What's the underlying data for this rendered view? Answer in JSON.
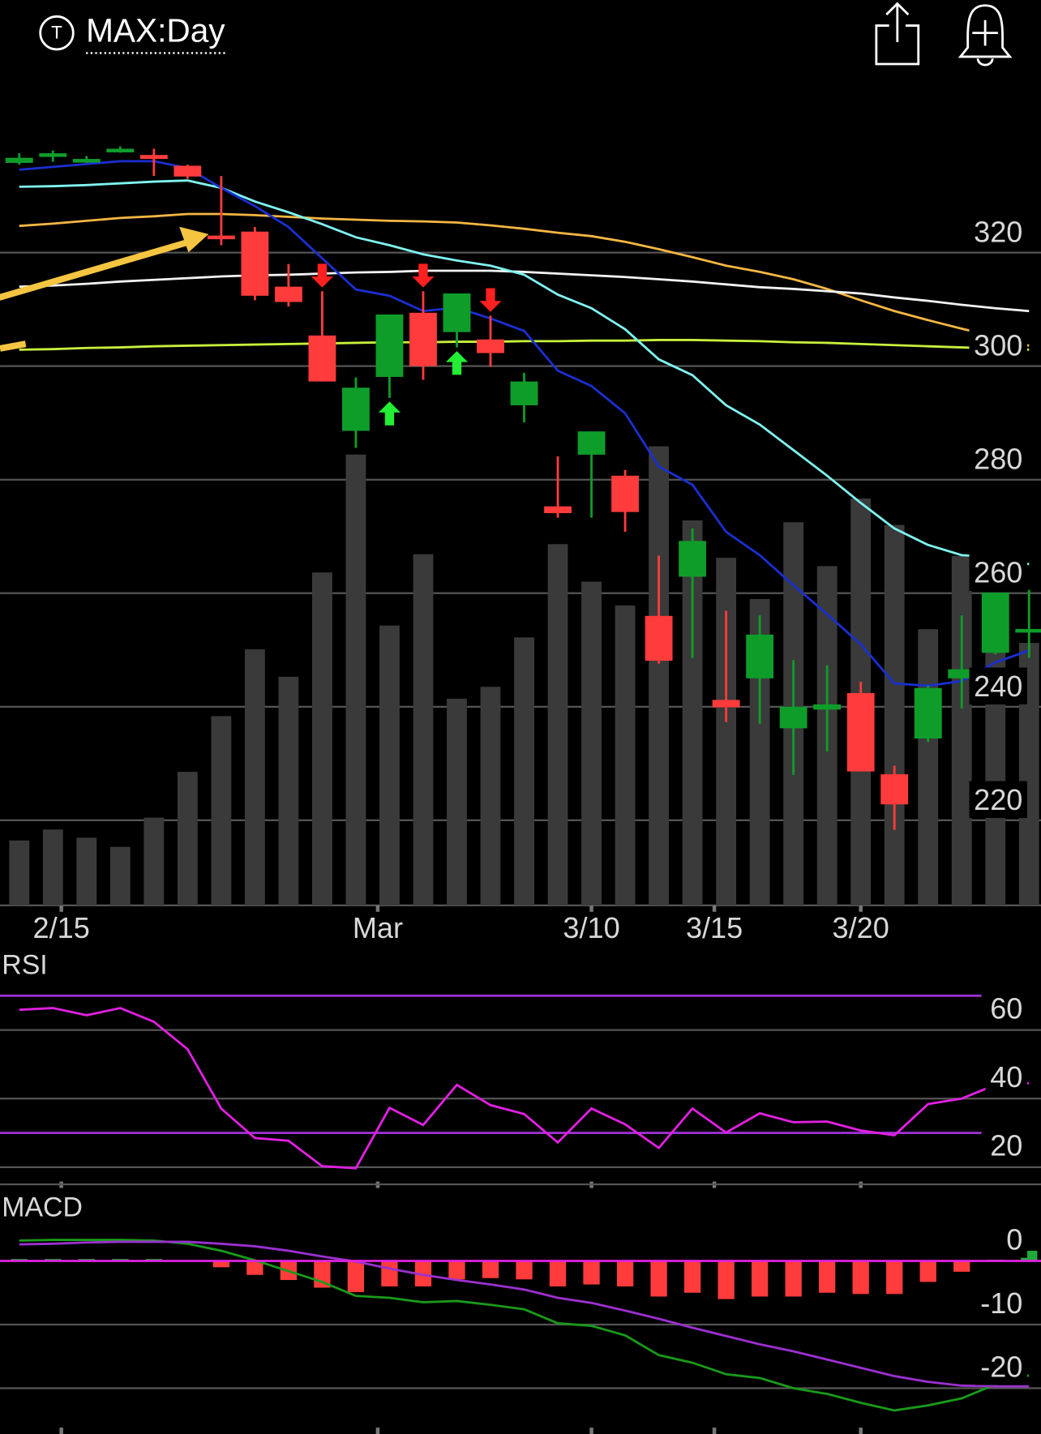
{
  "header": {
    "title": "MAX:Day"
  },
  "chart_data": [
    {
      "type": "candlestick",
      "categories": [
        null,
        null,
        null,
        null,
        null,
        null,
        null,
        null,
        null,
        null,
        null,
        null,
        null,
        null,
        null,
        null,
        null,
        null,
        null,
        null,
        null,
        null,
        null,
        null,
        null,
        null,
        null,
        null,
        null,
        null,
        null
      ],
      "open": [
        335.8,
        337.2,
        336.3,
        338.0,
        337.2,
        335.3,
        323.0,
        323.7,
        314.0,
        305.4,
        288.6,
        298.1,
        309.4,
        306.0,
        304.7,
        293.1,
        275.3,
        284.4,
        280.7,
        256.0,
        262.9,
        241.2,
        245.0,
        236.2,
        239.5,
        242.4,
        228.1,
        234.4,
        245.0,
        249.5,
        253.4
      ],
      "high": [
        337.5,
        338.0,
        337.0,
        338.7,
        338.3,
        335.5,
        333.5,
        324.5,
        318.0,
        313.2,
        298.0,
        309.1,
        313.2,
        312.8,
        308.9,
        298.8,
        284.1,
        288.5,
        281.7,
        266.6,
        271.4,
        256.9,
        256.1,
        248.2,
        247.3,
        244.4,
        229.6,
        243.7,
        256.1,
        260.1,
        260.6
      ],
      "low": [
        335.5,
        336.0,
        335.8,
        337.6,
        333.5,
        333.0,
        321.3,
        311.6,
        310.5,
        297.3,
        285.6,
        294.4,
        297.6,
        303.3,
        299.9,
        290.1,
        273.3,
        273.3,
        270.8,
        247.6,
        248.6,
        237.3,
        237.0,
        228.0,
        232.1,
        228.6,
        218.3,
        233.8,
        239.7,
        249.2,
        248.6
      ],
      "close": [
        336.7,
        337.5,
        336.5,
        338.3,
        336.5,
        333.4,
        322.5,
        312.4,
        311.3,
        297.3,
        296.2,
        309.1,
        300.0,
        312.8,
        302.3,
        297.3,
        274.1,
        288.5,
        274.3,
        248.1,
        269.2,
        239.9,
        252.7,
        240.0,
        240.4,
        228.6,
        222.8,
        243.3,
        246.6,
        260.1,
        253.7
      ],
      "up_color": "#0f9d2a",
      "down_color": "#ff3b3b",
      "volume": [
        7.1,
        8.3,
        7.4,
        6.4,
        9.6,
        14.6,
        20.7,
        28.0,
        25.0,
        36.4,
        49.3,
        30.6,
        38.4,
        22.6,
        23.9,
        29.3,
        39.5,
        35.4,
        32.8,
        50.2,
        42.1,
        38.0,
        33.5,
        41.9,
        37.1,
        44.5,
        41.6,
        30.2,
        38.2,
        28.7,
        28.7
      ],
      "volume_color": "#3a3a3a",
      "vlim": [
        0,
        90
      ],
      "series": [
        {
          "color": "#f5b642",
          "values": [
            324.7,
            325.1,
            325.6,
            326.1,
            326.4,
            326.8,
            326.8,
            326.6,
            326.3,
            326.0,
            325.8,
            325.6,
            325.5,
            325.3,
            324.8,
            324.2,
            323.5,
            322.9,
            321.9,
            320.6,
            319.2,
            317.7,
            316.6,
            315.3,
            313.6,
            311.6,
            309.7,
            308.1,
            306.6,
            305.2,
            303.6
          ]
        },
        {
          "color": "#f2f2f2",
          "values": [
            314.0,
            314.2,
            314.5,
            314.9,
            315.2,
            315.5,
            315.8,
            316.0,
            316.1,
            316.3,
            316.5,
            316.6,
            316.8,
            316.8,
            316.8,
            316.6,
            316.3,
            316.0,
            315.7,
            315.3,
            314.9,
            314.4,
            313.9,
            313.6,
            313.2,
            312.8,
            312.1,
            311.5,
            310.8,
            310.2,
            309.7
          ]
        },
        {
          "color": "#c8f03c",
          "values": [
            302.9,
            303.0,
            303.2,
            303.3,
            303.5,
            303.6,
            303.7,
            303.8,
            303.9,
            304.0,
            304.1,
            304.2,
            304.2,
            304.3,
            304.3,
            304.4,
            304.4,
            304.5,
            304.5,
            304.6,
            304.6,
            304.5,
            304.4,
            304.2,
            304.1,
            303.9,
            303.7,
            303.5,
            303.3,
            303.1,
            302.9
          ]
        },
        {
          "color": "#7ff4f0",
          "values": [
            331.6,
            331.7,
            331.9,
            332.2,
            332.5,
            332.7,
            331.4,
            329.0,
            327.1,
            325.0,
            322.7,
            321.3,
            319.7,
            318.6,
            317.7,
            316.1,
            312.6,
            310.2,
            306.5,
            301.2,
            298.4,
            293.1,
            289.7,
            285.2,
            280.7,
            275.9,
            271.4,
            268.5,
            266.7,
            266.4,
            265.1
          ]
        },
        {
          "color": "#1a2fd0",
          "values": [
            334.6,
            335.1,
            335.6,
            336.1,
            336.1,
            334.9,
            331.4,
            328.2,
            324.5,
            319.0,
            313.5,
            312.4,
            309.7,
            310.3,
            308.4,
            306.2,
            299.2,
            296.5,
            291.7,
            282.3,
            279.1,
            270.8,
            266.7,
            261.4,
            256.3,
            251.0,
            244.1,
            243.7,
            244.5,
            247.8,
            249.9
          ]
        }
      ],
      "signals": [
        {
          "index": 9,
          "kind": "sell"
        },
        {
          "index": 11,
          "kind": "buy"
        },
        {
          "index": 12,
          "kind": "sell"
        },
        {
          "index": 13,
          "kind": "buy"
        },
        {
          "index": 14,
          "kind": "sell"
        }
      ],
      "sell_color": "#ff2020",
      "buy_color": "#22ee33",
      "ylim": [
        205,
        350
      ],
      "yticks": [
        220,
        240,
        260,
        280,
        300,
        320
      ],
      "grid": true,
      "xticks": [
        {
          "value": 1.25,
          "label": "2/15"
        },
        {
          "value": 10.65,
          "label": "Mar"
        },
        {
          "value": 17,
          "label": "3/10"
        },
        {
          "value": 20.65,
          "label": "3/15"
        },
        {
          "value": 25,
          "label": "3/20"
        }
      ]
    },
    {
      "type": "line",
      "title": "RSI",
      "values": [
        65.9,
        66.4,
        64.3,
        66.4,
        62.4,
        54.4,
        37.1,
        28.5,
        27.7,
        20.3,
        19.7,
        37.3,
        32.3,
        44.0,
        38.1,
        35.5,
        27.2,
        37.1,
        32.5,
        25.6,
        37.1,
        30.1,
        35.7,
        33.1,
        33.3,
        30.7,
        29.3,
        38.4,
        40.0,
        44.0,
        44.5
      ],
      "color": "#e020e0",
      "ylim": [
        15,
        83
      ],
      "yticks": [
        20,
        40,
        60
      ],
      "grid": true,
      "hlines": [
        30,
        70
      ],
      "hline_color": "#9b30d0"
    },
    {
      "type": "macd",
      "title": "MACD",
      "histogram": [
        0.3,
        0.3,
        0.3,
        0.3,
        0.3,
        0,
        -1.0,
        -2.2,
        -3.0,
        -4.2,
        -4.9,
        -4.0,
        -4.0,
        -2.9,
        -2.7,
        -2.9,
        -4.0,
        -3.7,
        -4.0,
        -5.6,
        -5.0,
        -6.0,
        -5.6,
        -5.6,
        -5.0,
        -5.2,
        -5.2,
        -3.3,
        -1.7,
        0.2,
        1.6
      ],
      "positive_color": "#1faa3a",
      "negative_color": "#ff3b3b",
      "series": [
        {
          "color": "#1a9a1a",
          "values": [
            3.2,
            3.3,
            3.3,
            3.3,
            3.2,
            2.7,
            1.6,
            0.1,
            -1.6,
            -3.3,
            -5.5,
            -5.8,
            -6.5,
            -6.3,
            -6.9,
            -7.6,
            -9.8,
            -10.2,
            -11.7,
            -14.8,
            -16.0,
            -17.8,
            -18.4,
            -20.0,
            -20.9,
            -22.3,
            -23.5,
            -22.7,
            -21.6,
            -19.4,
            -18.0
          ]
        },
        {
          "color": "#9b30d0",
          "values": [
            2.6,
            2.7,
            2.9,
            3.0,
            3.0,
            3.0,
            2.7,
            2.3,
            1.6,
            0.7,
            -0.1,
            -1.2,
            -2.2,
            -3.0,
            -3.7,
            -4.5,
            -5.8,
            -6.6,
            -7.8,
            -9.1,
            -10.5,
            -11.8,
            -13.1,
            -14.2,
            -15.5,
            -16.8,
            -18.1,
            -19.0,
            -19.6,
            -19.7,
            -19.7
          ]
        }
      ],
      "ylim": [
        -27.2,
        10.6
      ],
      "yticks": [
        -20,
        -10,
        0
      ],
      "grid": true,
      "hlines": [
        0
      ],
      "hline_color": "#e020e0"
    }
  ]
}
